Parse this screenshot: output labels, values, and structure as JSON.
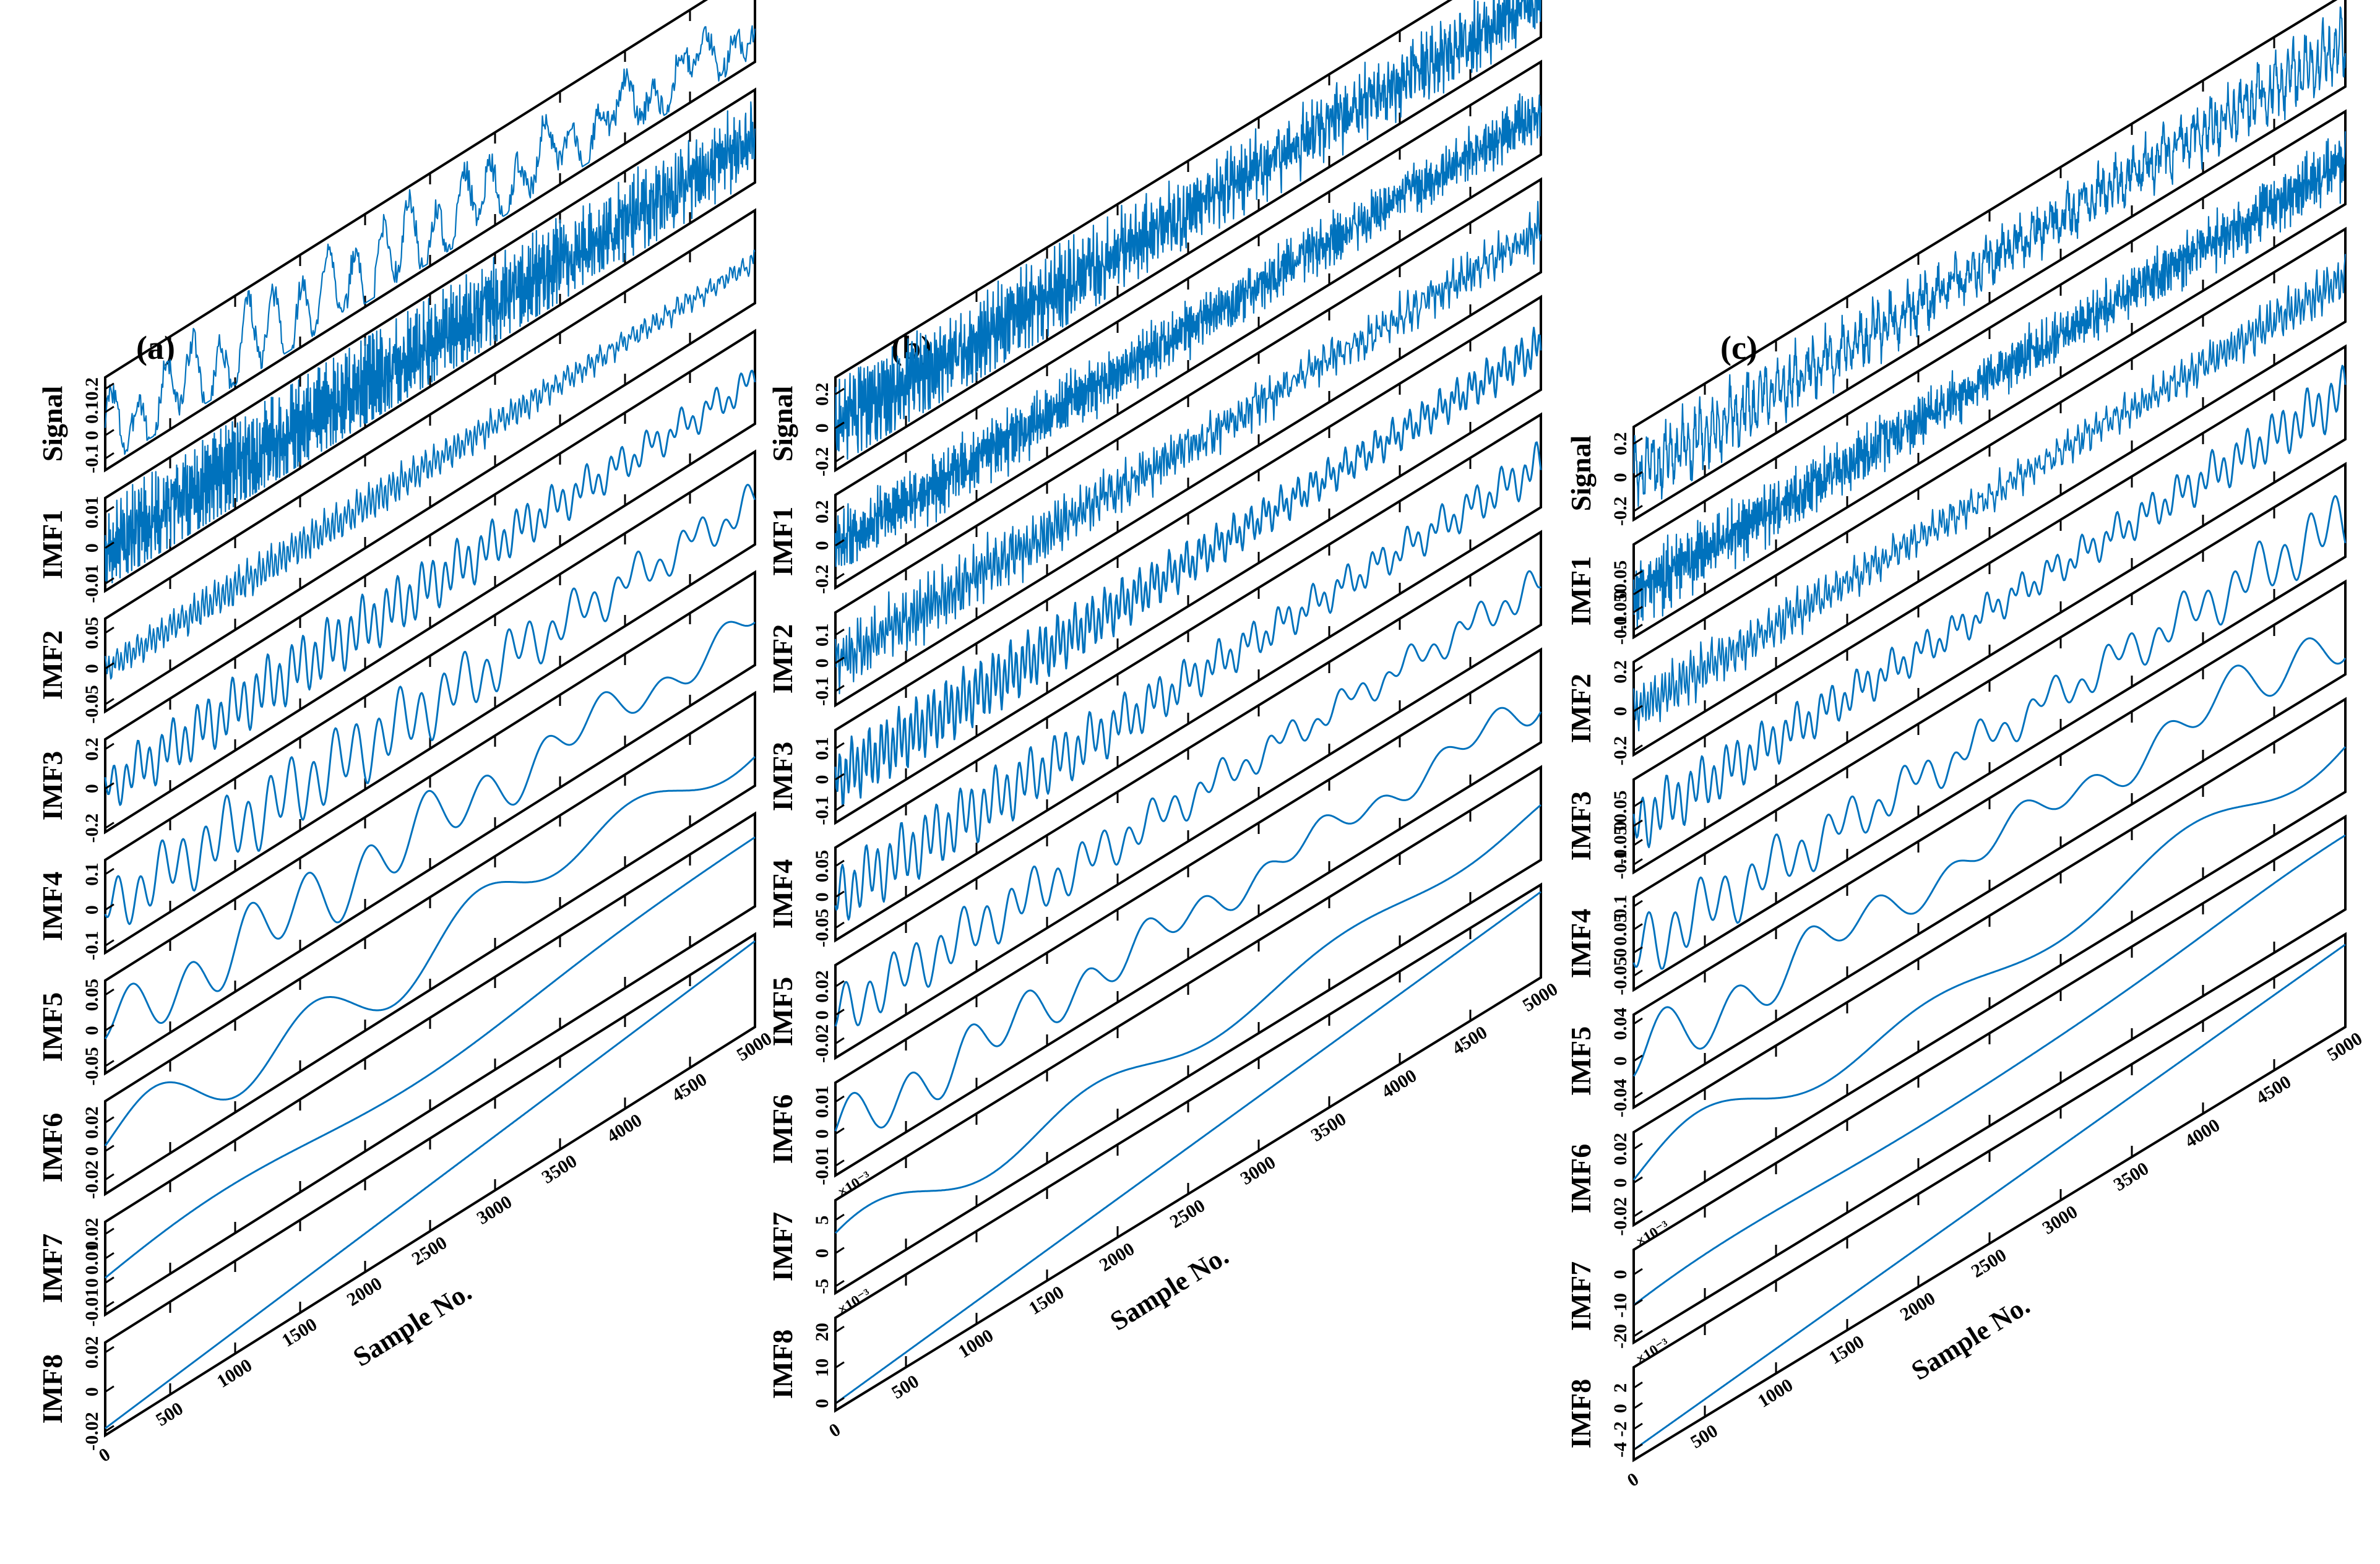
{
  "chart_data": [
    {
      "type": "line",
      "panel_label": "(a)",
      "xlabel": "Sample No.",
      "xlim": [
        0,
        5000
      ],
      "xticks": [
        0,
        500,
        1000,
        1500,
        2000,
        2500,
        3000,
        3500,
        4000,
        4500,
        5000
      ],
      "xtick_labels": [
        "0",
        "500",
        "1000",
        "1500",
        "2000",
        "2500",
        "3000",
        "3500",
        "4000",
        "4500",
        "5000"
      ],
      "series": [
        {
          "name": "Signal",
          "exp": "",
          "ylim": [
            -0.15,
            0.25
          ],
          "yticks": [
            "0.2",
            "0.1",
            "0",
            "-0.1"
          ],
          "freq": 24,
          "noise": 0.35,
          "amp": 0.16,
          "trend": 0
        },
        {
          "name": "IMF1",
          "exp": "",
          "ylim": [
            -0.012,
            0.014
          ],
          "yticks": [
            "0.01",
            "0",
            "-0.01"
          ],
          "freq": 900,
          "noise": 1.0,
          "amp": 0.008,
          "trend": 0
        },
        {
          "name": "IMF2",
          "exp": "",
          "ylim": [
            -0.06,
            0.07
          ],
          "yticks": [
            "0.05",
            "0",
            "-0.05"
          ],
          "freq": 160,
          "noise": 0.25,
          "amp": 0.02,
          "trend": 0
        },
        {
          "name": "IMF3",
          "exp": "",
          "ylim": [
            -0.22,
            0.25
          ],
          "yticks": [
            "0.2",
            "0",
            "-0.2"
          ],
          "freq": 55,
          "noise": 0.0,
          "amp": 0.12,
          "trend": 0
        },
        {
          "name": "IMF4",
          "exp": "",
          "ylim": [
            -0.12,
            0.14
          ],
          "yticks": [
            "0.1",
            "0",
            "-0.1"
          ],
          "freq": 30,
          "noise": 0.0,
          "amp": 0.08,
          "trend": 0
        },
        {
          "name": "IMF5",
          "exp": "",
          "ylim": [
            -0.06,
            0.07
          ],
          "yticks": [
            "0.05",
            "0",
            "-0.05"
          ],
          "freq": 11,
          "noise": 0.0,
          "amp": 0.04,
          "trend": 0
        },
        {
          "name": "IMF6",
          "exp": "",
          "ylim": [
            -0.03,
            0.035
          ],
          "yticks": [
            "0.02",
            "0",
            "-0.02"
          ],
          "freq": 4,
          "noise": 0.0,
          "amp": 0.02,
          "trend": 0
        },
        {
          "name": "IMF7",
          "exp": "",
          "ylim": [
            -0.013,
            0.025
          ],
          "yticks": [
            "0.02",
            "0.01",
            "0",
            "-0.01"
          ],
          "freq": 1.2,
          "noise": 0.0,
          "amp": 0.006,
          "trend": 0.018
        },
        {
          "name": "IMF8",
          "exp": "",
          "ylim": [
            -0.022,
            0.025
          ],
          "yticks": [
            "0.02",
            "0",
            "-0.02"
          ],
          "freq": 0.3,
          "noise": 0.0,
          "amp": 0.0,
          "trend": 0.04
        }
      ]
    },
    {
      "type": "line",
      "panel_label": "(b)",
      "xlabel": "Sample No.",
      "xlim": [
        0,
        5000
      ],
      "xticks": [
        0,
        500,
        1000,
        1500,
        2000,
        2500,
        3000,
        3500,
        4000,
        4500,
        5000
      ],
      "xtick_labels": [
        "0",
        "500",
        "1000",
        "1500",
        "2000",
        "2500",
        "3000",
        "3500",
        "4000",
        "4500",
        "5000"
      ],
      "series": [
        {
          "name": "Signal",
          "exp": "",
          "ylim": [
            -0.25,
            0.3
          ],
          "yticks": [
            "0.2",
            "0",
            "-0.2"
          ],
          "freq": 400,
          "noise": 0.8,
          "amp": 0.16,
          "trend": 0
        },
        {
          "name": "IMF1",
          "exp": "",
          "ylim": [
            -0.25,
            0.3
          ],
          "yticks": [
            "0.2",
            "0",
            "-0.2"
          ],
          "freq": 900,
          "noise": 1.0,
          "amp": 0.1,
          "trend": 0
        },
        {
          "name": "IMF2",
          "exp": "",
          "ylim": [
            -0.15,
            0.18
          ],
          "yticks": [
            "0.1",
            "0",
            "-0.1"
          ],
          "freq": 250,
          "noise": 0.4,
          "amp": 0.08,
          "trend": 0
        },
        {
          "name": "IMF3",
          "exp": "",
          "ylim": [
            -0.14,
            0.16
          ],
          "yticks": [
            "0.1",
            "0",
            "-0.1"
          ],
          "freq": 120,
          "noise": 0.0,
          "amp": 0.08,
          "trend": 0
        },
        {
          "name": "IMF4",
          "exp": "",
          "ylim": [
            -0.07,
            0.08
          ],
          "yticks": [
            "0.05",
            "0",
            "-0.05"
          ],
          "freq": 60,
          "noise": 0.0,
          "amp": 0.04,
          "trend": 0
        },
        {
          "name": "IMF5",
          "exp": "",
          "ylim": [
            -0.03,
            0.035
          ],
          "yticks": [
            "0.02",
            "0",
            "-0.02"
          ],
          "freq": 30,
          "noise": 0.0,
          "amp": 0.015,
          "trend": 0
        },
        {
          "name": "IMF6",
          "exp": "",
          "ylim": [
            -0.013,
            0.016
          ],
          "yticks": [
            "0.01",
            "0",
            "-0.01"
          ],
          "freq": 12,
          "noise": 0.0,
          "amp": 0.007,
          "trend": 0
        },
        {
          "name": "IMF7",
          "exp": "×10⁻³",
          "ylim": [
            -6,
            8
          ],
          "yticks": [
            "5",
            "0",
            "-5"
          ],
          "freq": 3,
          "noise": 0.0,
          "amp": 3,
          "trend": 0
        },
        {
          "name": "IMF8",
          "exp": "×10⁻³",
          "ylim": [
            -2,
            24
          ],
          "yticks": [
            "20",
            "10",
            "0"
          ],
          "freq": 0.3,
          "noise": 0.0,
          "amp": 0.0,
          "trend": 22
        }
      ]
    },
    {
      "type": "line",
      "panel_label": "(c)",
      "xlabel": "Sample No.",
      "xlim": [
        0,
        5000
      ],
      "xticks": [
        0,
        500,
        1000,
        1500,
        2000,
        2500,
        3000,
        3500,
        4000,
        4500,
        5000
      ],
      "xtick_labels": [
        "0",
        "500",
        "1000",
        "1500",
        "2000",
        "2500",
        "3000",
        "3500",
        "4000",
        "4500",
        "5000"
      ],
      "series": [
        {
          "name": "Signal",
          "exp": "",
          "ylim": [
            -0.25,
            0.3
          ],
          "yticks": [
            "0.2",
            "0",
            "-0.2"
          ],
          "freq": 120,
          "noise": 0.6,
          "amp": 0.15,
          "trend": 0
        },
        {
          "name": "IMF1",
          "exp": "",
          "ylim": [
            -0.12,
            0.14
          ],
          "yticks": [
            "0.05",
            "0",
            "-0.05",
            "-0.1"
          ],
          "freq": 900,
          "noise": 1.0,
          "amp": 0.05,
          "trend": 0
        },
        {
          "name": "IMF2",
          "exp": "",
          "ylim": [
            -0.22,
            0.25
          ],
          "yticks": [
            "0.2",
            "0",
            "-0.2"
          ],
          "freq": 200,
          "noise": 0.3,
          "amp": 0.1,
          "trend": 0
        },
        {
          "name": "IMF3",
          "exp": "",
          "ylim": [
            -0.12,
            0.12
          ],
          "yticks": [
            "0.05",
            "0",
            "-0.05",
            "-0.1"
          ],
          "freq": 60,
          "noise": 0.0,
          "amp": 0.06,
          "trend": 0
        },
        {
          "name": "IMF4",
          "exp": "",
          "ylim": [
            -0.08,
            0.12
          ],
          "yticks": [
            "0.1",
            "0.05",
            "0",
            "-0.05"
          ],
          "freq": 28,
          "noise": 0.0,
          "amp": 0.06,
          "trend": 0
        },
        {
          "name": "IMF5",
          "exp": "",
          "ylim": [
            -0.05,
            0.05
          ],
          "yticks": [
            "0.04",
            "0",
            "-0.04"
          ],
          "freq": 10,
          "noise": 0.0,
          "amp": 0.03,
          "trend": 0
        },
        {
          "name": "IMF6",
          "exp": "",
          "ylim": [
            -0.025,
            0.03
          ],
          "yticks": [
            "0.02",
            "0",
            "-0.02"
          ],
          "freq": 3,
          "noise": 0.0,
          "amp": 0.015,
          "trend": 0
        },
        {
          "name": "IMF7",
          "exp": "×10⁻³",
          "ylim": [
            -22,
            8
          ],
          "yticks": [
            "0",
            "-10",
            "-20"
          ],
          "freq": 1.2,
          "noise": 0.0,
          "amp": 4,
          "trend": 14
        },
        {
          "name": "IMF8",
          "exp": "×10⁻³",
          "ylim": [
            -5,
            4
          ],
          "yticks": [
            "2",
            "0",
            "-2",
            "-4"
          ],
          "freq": 0.3,
          "noise": 0.0,
          "amp": 0.0,
          "trend": 7
        }
      ]
    }
  ]
}
